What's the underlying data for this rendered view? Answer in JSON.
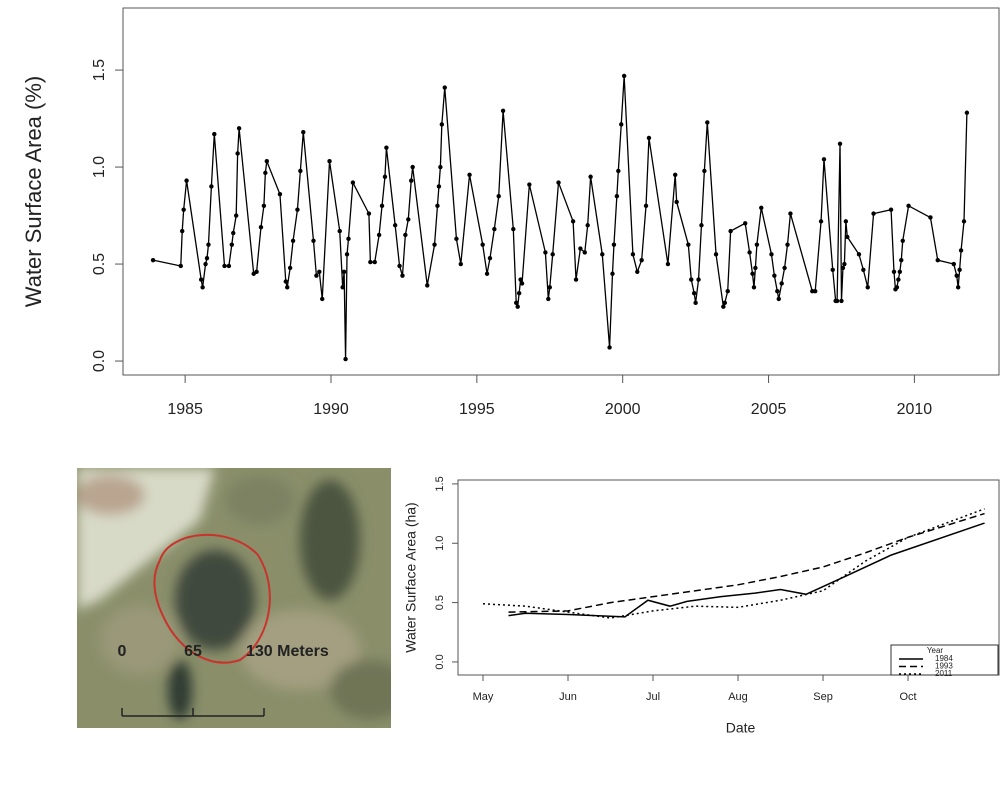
{
  "chart_data": [
    {
      "type": "line",
      "ylabel": "Water Surface Area (%)",
      "color": "#000000",
      "line_style": "solid",
      "markers": true,
      "xlim": [
        1982.87,
        2012.9
      ],
      "ylim": [
        -0.072,
        1.82
      ],
      "xticks": [
        1985,
        1990,
        1995,
        2000,
        2005,
        2010
      ],
      "yticks": [
        {
          "value": 0,
          "label": "0.0"
        },
        0.5,
        {
          "value": 1,
          "label": "1.0"
        },
        1.5
      ],
      "x": [
        1983.9,
        1984.85,
        1984.9,
        1984.95,
        1985.05,
        1985.55,
        1985.6,
        1985.7,
        1985.75,
        1985.8,
        1985.9,
        1986.0,
        1986.35,
        1986.5,
        1986.6,
        1986.65,
        1986.75,
        1986.8,
        1986.85,
        1987.35,
        1987.45,
        1987.6,
        1987.7,
        1987.75,
        1987.8,
        1988.25,
        1988.45,
        1988.5,
        1988.6,
        1988.7,
        1988.85,
        1988.95,
        1989.05,
        1989.4,
        1989.5,
        1989.6,
        1989.7,
        1989.95,
        1990.3,
        1990.4,
        1990.45,
        1990.5,
        1990.55,
        1990.6,
        1990.75,
        1991.3,
        1991.35,
        1991.5,
        1991.65,
        1991.75,
        1991.85,
        1991.9,
        1992.2,
        1992.35,
        1992.45,
        1992.55,
        1992.65,
        1992.75,
        1992.8,
        1993.3,
        1993.55,
        1993.65,
        1993.7,
        1993.75,
        1993.8,
        1993.9,
        1994.3,
        1994.45,
        1994.75,
        1995.2,
        1995.35,
        1995.45,
        1995.6,
        1995.75,
        1995.9,
        1996.25,
        1996.35,
        1996.4,
        1996.45,
        1996.5,
        1996.55,
        1996.8,
        1997.35,
        1997.45,
        1997.5,
        1997.6,
        1997.8,
        1998.3,
        1998.4,
        1998.55,
        1998.7,
        1998.8,
        1998.9,
        1999.3,
        1999.55,
        1999.65,
        1999.7,
        1999.8,
        1999.85,
        1999.95,
        2000.05,
        2000.35,
        2000.5,
        2000.65,
        2000.8,
        2000.9,
        2001.55,
        2001.8,
        2001.85,
        2002.25,
        2002.35,
        2002.45,
        2002.5,
        2002.6,
        2002.7,
        2002.8,
        2002.9,
        2003.2,
        2003.45,
        2003.5,
        2003.6,
        2003.7,
        2004.2,
        2004.35,
        2004.45,
        2004.5,
        2004.55,
        2004.6,
        2004.75,
        2005.1,
        2005.2,
        2005.3,
        2005.35,
        2005.45,
        2005.55,
        2005.65,
        2005.75,
        2006.5,
        2006.6,
        2006.8,
        2006.9,
        2007.2,
        2007.3,
        2007.35,
        2007.45,
        2007.5,
        2007.55,
        2007.6,
        2007.65,
        2007.7,
        2008.1,
        2008.25,
        2008.4,
        2008.6,
        2009.2,
        2009.3,
        2009.35,
        2009.4,
        2009.45,
        2009.5,
        2009.55,
        2009.6,
        2009.8,
        2010.55,
        2010.8,
        2011.35,
        2011.45,
        2011.5,
        2011.55,
        2011.6,
        2011.7,
        2011.8
      ],
      "values": [
        0.52,
        0.49,
        0.67,
        0.78,
        0.93,
        0.42,
        0.38,
        0.5,
        0.53,
        0.6,
        0.9,
        1.17,
        0.49,
        0.49,
        0.6,
        0.66,
        0.75,
        1.07,
        1.2,
        0.45,
        0.46,
        0.69,
        0.8,
        0.97,
        1.03,
        0.86,
        0.41,
        0.38,
        0.48,
        0.62,
        0.78,
        0.98,
        1.18,
        0.62,
        0.44,
        0.46,
        0.32,
        1.03,
        0.67,
        0.38,
        0.46,
        0.01,
        0.55,
        0.63,
        0.92,
        0.76,
        0.51,
        0.51,
        0.65,
        0.8,
        0.95,
        1.1,
        0.7,
        0.49,
        0.44,
        0.65,
        0.73,
        0.93,
        1.0,
        0.39,
        0.6,
        0.8,
        0.9,
        1.0,
        1.22,
        1.41,
        0.63,
        0.5,
        0.96,
        0.6,
        0.45,
        0.53,
        0.68,
        0.85,
        1.29,
        0.68,
        0.3,
        0.28,
        0.35,
        0.42,
        0.4,
        0.91,
        0.56,
        0.32,
        0.38,
        0.55,
        0.92,
        0.72,
        0.42,
        0.58,
        0.56,
        0.7,
        0.95,
        0.55,
        0.07,
        0.45,
        0.6,
        0.85,
        0.98,
        1.22,
        1.47,
        0.55,
        0.46,
        0.52,
        0.8,
        1.15,
        0.5,
        0.96,
        0.82,
        0.6,
        0.42,
        0.35,
        0.3,
        0.42,
        0.7,
        0.98,
        1.23,
        0.55,
        0.28,
        0.3,
        0.36,
        0.67,
        0.71,
        0.56,
        0.45,
        0.38,
        0.48,
        0.6,
        0.79,
        0.55,
        0.44,
        0.36,
        0.32,
        0.4,
        0.48,
        0.6,
        0.76,
        0.36,
        0.36,
        0.72,
        1.04,
        0.47,
        0.31,
        0.31,
        1.12,
        0.31,
        0.48,
        0.5,
        0.72,
        0.64,
        0.55,
        0.47,
        0.38,
        0.76,
        0.78,
        0.46,
        0.37,
        0.38,
        0.42,
        0.46,
        0.52,
        0.62,
        0.8,
        0.74,
        0.52,
        0.5,
        0.44,
        0.38,
        0.47,
        0.57,
        0.72,
        1.28
      ]
    },
    {
      "type": "line",
      "xlabel": "Date",
      "ylabel": "Water Surface Area (ha)",
      "legend_title": "Year",
      "legend": "bottom-right",
      "markers": false,
      "xlim": [
        4.706,
        11.07
      ],
      "ylim": [
        -0.11,
        1.533
      ],
      "xticks": [
        {
          "value": 5,
          "label": "May"
        },
        {
          "value": 6,
          "label": "Jun"
        },
        {
          "value": 7,
          "label": "Jul"
        },
        {
          "value": 8,
          "label": "Aug"
        },
        {
          "value": 9,
          "label": "Sep"
        },
        {
          "value": 10,
          "label": "Oct"
        }
      ],
      "yticks": [
        {
          "value": 0,
          "label": "0.0"
        },
        0.5,
        {
          "value": 1,
          "label": "1.0"
        },
        1.5
      ],
      "series": [
        {
          "name": "1984",
          "color": "#000000",
          "line_style": "solid",
          "x": [
            5.3,
            5.5,
            6.0,
            6.67,
            6.94,
            7.2,
            7.4,
            7.8,
            8.2,
            8.5,
            8.8,
            9.2,
            9.8,
            10.9
          ],
          "values": [
            0.39,
            0.41,
            0.4,
            0.38,
            0.52,
            0.47,
            0.51,
            0.55,
            0.58,
            0.61,
            0.57,
            0.7,
            0.9,
            1.17
          ]
        },
        {
          "name": "1993",
          "color": "#000000",
          "line_style": "dashed",
          "x": [
            5.3,
            6.0,
            6.5,
            7.0,
            7.5,
            8.0,
            8.5,
            9.0,
            9.5,
            10.0,
            10.9
          ],
          "values": [
            0.42,
            0.43,
            0.5,
            0.55,
            0.6,
            0.65,
            0.72,
            0.8,
            0.92,
            1.05,
            1.25
          ]
        },
        {
          "name": "2011",
          "color": "#000000",
          "line_style": "dotted",
          "x": [
            5.0,
            5.5,
            6.0,
            6.5,
            7.0,
            7.5,
            8.0,
            8.5,
            9.0,
            9.5,
            10.0,
            10.9
          ],
          "values": [
            0.49,
            0.47,
            0.42,
            0.37,
            0.43,
            0.47,
            0.46,
            0.52,
            0.6,
            0.85,
            1.05,
            1.29
          ]
        }
      ]
    }
  ],
  "map_inset": {
    "scale_labels": [
      "0",
      "65",
      "130 Meters"
    ]
  }
}
